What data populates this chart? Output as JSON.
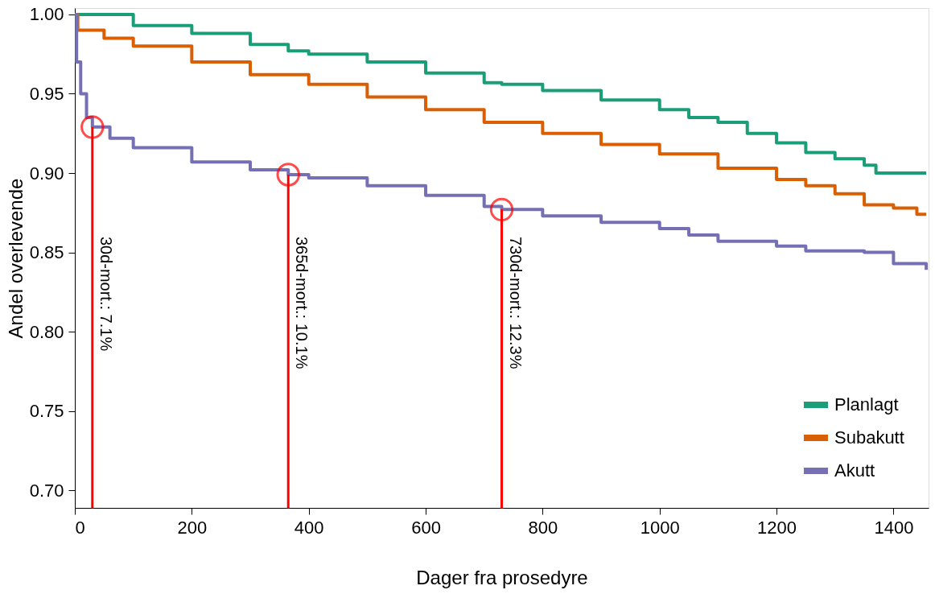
{
  "chart_data": {
    "type": "step",
    "xlabel": "Dager fra prosedyre",
    "ylabel": "Andel overlevende",
    "xlim": [
      0,
      1460
    ],
    "ylim": [
      0.689,
      1.004
    ],
    "xticks": [
      0,
      200,
      400,
      600,
      800,
      {
        "value": 1000,
        "label": "1000"
      },
      {
        "value": 1200,
        "label": "1200"
      },
      {
        "value": 1400,
        "label": "1400"
      }
    ],
    "yticks": [
      {
        "value": 0.7,
        "label": "0.70"
      },
      {
        "value": 0.75,
        "label": "0.75"
      },
      {
        "value": 0.8,
        "label": "0.80"
      },
      {
        "value": 0.85,
        "label": "0.85"
      },
      {
        "value": 0.9,
        "label": "0.90"
      },
      {
        "value": 0.95,
        "label": "0.95"
      },
      {
        "value": 1.0,
        "label": "1.00"
      }
    ],
    "grid": false,
    "legend": "bottom right",
    "series": [
      {
        "name": "Planlagt",
        "color": "#1b9e77",
        "x": [
          0,
          100,
          200,
          300,
          365,
          400,
          500,
          600,
          700,
          730,
          800,
          900,
          1000,
          1050,
          1100,
          1150,
          1200,
          1250,
          1300,
          1350,
          1370,
          1456
        ],
        "values": [
          1.0,
          0.993,
          0.988,
          0.981,
          0.977,
          0.975,
          0.97,
          0.963,
          0.957,
          0.956,
          0.952,
          0.946,
          0.94,
          0.935,
          0.932,
          0.925,
          0.919,
          0.913,
          0.909,
          0.905,
          0.9,
          0.9
        ]
      },
      {
        "name": "Subakutt",
        "color": "#d95f02",
        "x": [
          0,
          5,
          50,
          100,
          200,
          300,
          400,
          500,
          600,
          700,
          800,
          900,
          1000,
          1100,
          1200,
          1250,
          1300,
          1350,
          1400,
          1440,
          1456
        ],
        "values": [
          1.0,
          0.99,
          0.985,
          0.98,
          0.97,
          0.962,
          0.956,
          0.948,
          0.94,
          0.932,
          0.925,
          0.918,
          0.912,
          0.903,
          0.896,
          0.892,
          0.887,
          0.88,
          0.878,
          0.874,
          0.874
        ]
      },
      {
        "name": "Akutt",
        "color": "#7570b3",
        "x": [
          0,
          3,
          10,
          20,
          30,
          60,
          100,
          200,
          300,
          365,
          400,
          500,
          600,
          700,
          730,
          800,
          900,
          1000,
          1050,
          1100,
          1200,
          1250,
          1350,
          1400,
          1456
        ],
        "values": [
          1.0,
          0.97,
          0.95,
          0.935,
          0.929,
          0.922,
          0.916,
          0.907,
          0.902,
          0.899,
          0.897,
          0.892,
          0.886,
          0.879,
          0.877,
          0.873,
          0.869,
          0.865,
          0.861,
          0.857,
          0.854,
          0.851,
          0.85,
          0.843,
          0.839
        ]
      },
      {
        "type": "line",
        "color": "#ff0000",
        "x": [
          30,
          30
        ],
        "values": [
          0.689,
          0.929
        ]
      },
      {
        "type": "line",
        "color": "#ff0000",
        "x": [
          365,
          365
        ],
        "values": [
          0.689,
          0.899
        ]
      },
      {
        "type": "line",
        "color": "#ff0000",
        "x": [
          730,
          730
        ],
        "values": [
          0.689,
          0.877
        ]
      },
      {
        "type": "scatter",
        "marker": "circle",
        "color": "#ff0000",
        "x": [
          30,
          365,
          730
        ],
        "values": [
          0.929,
          0.899,
          0.877
        ]
      }
    ],
    "annotations": [
      {
        "text": "30d-mort.: 7.1%",
        "x": 30,
        "y": 0.86
      },
      {
        "text": "365d-mort.: 10.1%",
        "x": 365,
        "y": 0.86
      },
      {
        "text": "730d-mort.: 12.3%",
        "x": 730,
        "y": 0.86
      }
    ]
  }
}
